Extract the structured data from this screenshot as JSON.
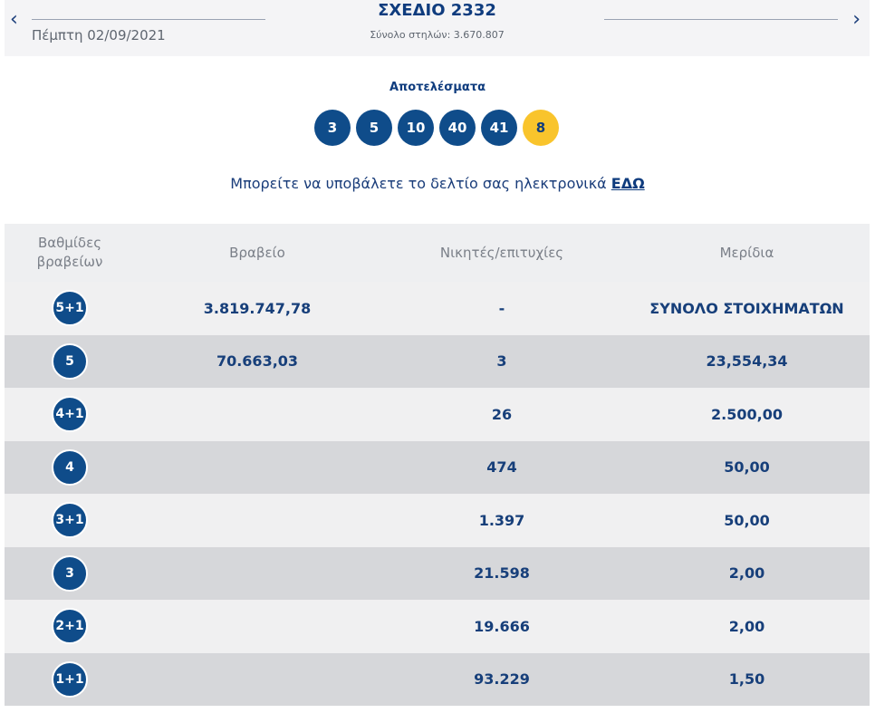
{
  "header": {
    "prev_icon": "‹",
    "next_icon": "›",
    "date": "Πέμπτη 02/09/2021",
    "title": "ΣΧΕΔΙΟ 2332",
    "columns": "Σύνολο στηλών: 3.670.807"
  },
  "results": {
    "label": "Αποτελέσματα",
    "numbers": [
      "3",
      "5",
      "10",
      "40",
      "41"
    ],
    "joker": "8"
  },
  "submit": {
    "text": "Μπορείτε να υποβάλετε το δελτίο σας ηλεκτρονικά",
    "link": "ΕΔΩ"
  },
  "table": {
    "headers": {
      "tiers": "Βαθμίδες βραβείων",
      "prize": "Βραβείο",
      "winners": "Νικητές/επιτυχίες",
      "dividend": "Μερίδια"
    },
    "rows": [
      {
        "tier": "5+1",
        "prize": "3.819.747,78",
        "winners": "-",
        "dividend": "ΣΥΝΟΛΟ ΣΤΟΙΧΗΜΑΤΩΝ"
      },
      {
        "tier": "5",
        "prize": "70.663,03",
        "winners": "3",
        "dividend": "23,554,34"
      },
      {
        "tier": "4+1",
        "prize": "",
        "winners": "26",
        "dividend": "2.500,00"
      },
      {
        "tier": "4",
        "prize": "",
        "winners": "474",
        "dividend": "50,00"
      },
      {
        "tier": "3+1",
        "prize": "",
        "winners": "1.397",
        "dividend": "50,00"
      },
      {
        "tier": "3",
        "prize": "",
        "winners": "21.598",
        "dividend": "2,00"
      },
      {
        "tier": "2+1",
        "prize": "",
        "winners": "19.666",
        "dividend": "2,00"
      },
      {
        "tier": "1+1",
        "prize": "",
        "winners": "93.229",
        "dividend": "1,50"
      }
    ]
  },
  "colors": {
    "ball": "#0f4c8a",
    "joker": "#f9c42c",
    "text": "#0f3c7e"
  }
}
